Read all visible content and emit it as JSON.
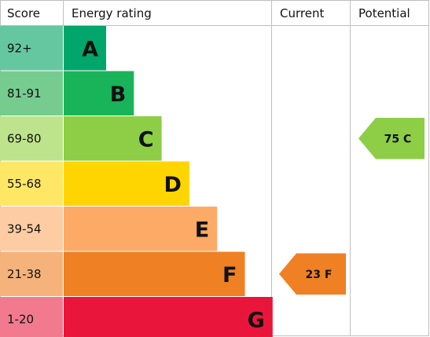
{
  "headers": {
    "score": "Score",
    "energy_rating": "Energy rating",
    "current": "Current",
    "potential": "Potential"
  },
  "chart_data": {
    "type": "bar",
    "categories": [
      "A",
      "B",
      "C",
      "D",
      "E",
      "F",
      "G"
    ],
    "bands": [
      {
        "letter": "A",
        "score": "92+",
        "color": "#00a66b",
        "score_color": "#64c7a0"
      },
      {
        "letter": "B",
        "score": "81-91",
        "color": "#19b459",
        "score_color": "#76cc8f"
      },
      {
        "letter": "C",
        "score": "69-80",
        "color": "#8dce46",
        "score_color": "#bde48c"
      },
      {
        "letter": "D",
        "score": "55-68",
        "color": "#ffd500",
        "score_color": "#ffe766"
      },
      {
        "letter": "E",
        "score": "39-54",
        "color": "#fcaa65",
        "score_color": "#fdcca3"
      },
      {
        "letter": "F",
        "score": "21-38",
        "color": "#ef8023",
        "score_color": "#f5b37b"
      },
      {
        "letter": "G",
        "score": "1-20",
        "color": "#e9153b",
        "score_color": "#f27a8f"
      }
    ],
    "current": {
      "value": 23,
      "band": "F",
      "label": "23 F",
      "color": "#ef8023"
    },
    "potential": {
      "value": 75,
      "band": "C",
      "label": "75 C",
      "color": "#8dce46"
    }
  }
}
